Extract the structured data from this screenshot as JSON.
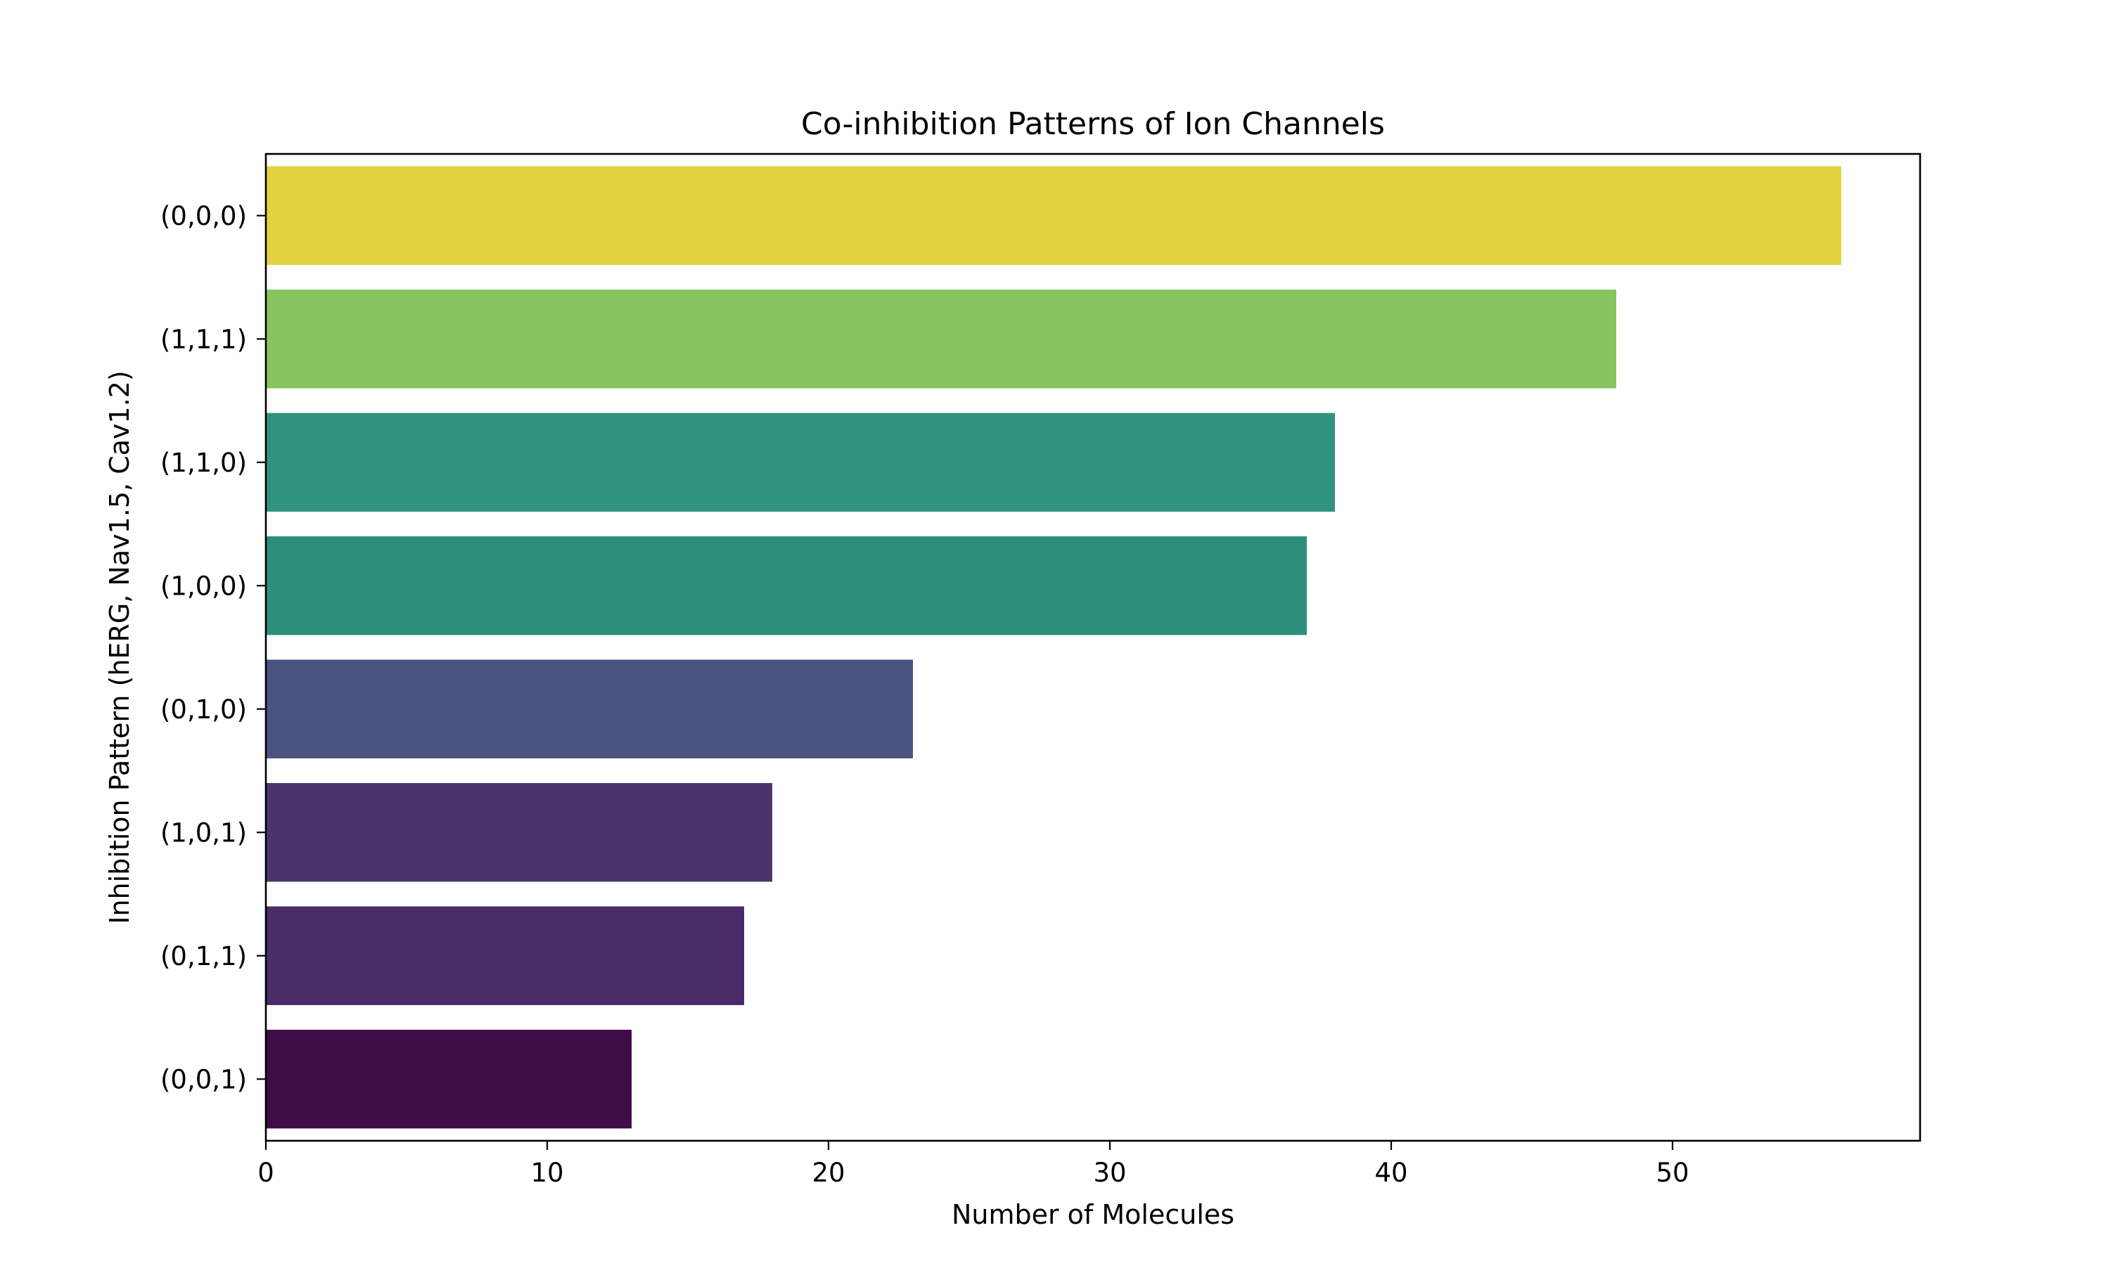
{
  "chart_data": {
    "type": "bar",
    "orientation": "horizontal",
    "title": "Co-inhibition Patterns of Ion Channels",
    "xlabel": "Number of Molecules",
    "ylabel": "Inhibition Pattern (hERG, Nav1.5, Cav1.2)",
    "categories": [
      "(0,0,0)",
      "(1,1,1)",
      "(1,1,0)",
      "(1,0,0)",
      "(0,1,0)",
      "(1,0,1)",
      "(0,1,1)",
      "(0,0,1)"
    ],
    "values": [
      56,
      48,
      38,
      37,
      23,
      18,
      17,
      13
    ],
    "colors": [
      "#e1d33f",
      "#87c35f",
      "#32937f",
      "#2e8e7c",
      "#48537f",
      "#4b336c",
      "#4a2c67",
      "#3f0c47"
    ],
    "xlim": [
      0,
      58.8
    ],
    "xticks": [
      0,
      10,
      20,
      30,
      40,
      50
    ],
    "grid": false,
    "legend": false
  }
}
